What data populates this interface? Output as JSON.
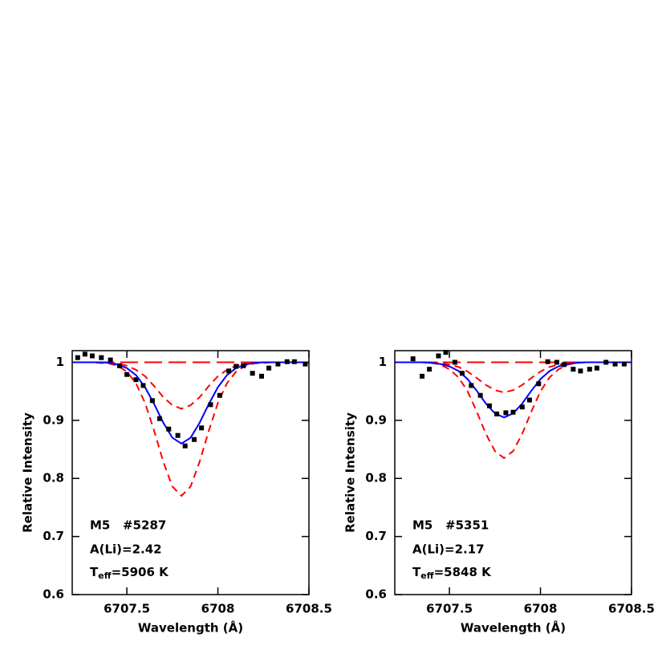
{
  "chart_data": [
    {
      "type": "line",
      "xlabel": "Wavelength (Å)",
      "ylabel": "Relative Intensity",
      "xlim": [
        6707.2,
        6708.5
      ],
      "xticks": [
        6707.5,
        6708,
        6708.5
      ],
      "ylim": [
        0.6,
        1.02
      ],
      "yticks": [
        0.6,
        0.7,
        0.8,
        0.9,
        1
      ],
      "annotations": [
        "M5   #5287",
        "A(Li)=2.42"
      ],
      "teff": {
        "symbol": "T",
        "subscript": "eff",
        "text": "=5906 K"
      },
      "x": [
        6707.2,
        6707.25,
        6707.3,
        6707.35,
        6707.4,
        6707.45,
        6707.5,
        6707.55,
        6707.6,
        6707.65,
        6707.7,
        6707.75,
        6707.8,
        6707.85,
        6707.9,
        6707.95,
        6708,
        6708.05,
        6708.1,
        6708.15,
        6708.2,
        6708.25,
        6708.3,
        6708.35,
        6708.4,
        6708.45,
        6708.5
      ],
      "series": [
        {
          "color": "#ff0000",
          "dash": "long",
          "values": [
            1,
            1,
            1,
            1,
            1,
            1,
            1,
            1,
            1,
            1,
            1,
            1,
            1,
            1,
            1,
            1,
            1,
            1,
            1,
            1,
            1,
            1,
            1,
            1,
            1,
            1,
            1
          ]
        },
        {
          "color": "#ff0000",
          "dash": "short",
          "values": [
            1,
            1,
            1,
            1,
            0.999,
            0.998,
            0.994,
            0.987,
            0.976,
            0.959,
            0.94,
            0.926,
            0.92,
            0.926,
            0.94,
            0.959,
            0.976,
            0.987,
            0.994,
            0.998,
            0.999,
            1,
            1,
            1,
            1,
            1,
            1
          ]
        },
        {
          "color": "#ff0000",
          "dash": "short",
          "values": [
            1,
            1,
            1,
            0.999,
            0.998,
            0.994,
            0.984,
            0.964,
            0.93,
            0.882,
            0.829,
            0.786,
            0.77,
            0.786,
            0.829,
            0.882,
            0.93,
            0.964,
            0.984,
            0.994,
            0.998,
            0.999,
            1,
            1,
            1,
            1,
            1
          ]
        },
        {
          "color": "#0000ff",
          "dash": "solid",
          "values": [
            1,
            1,
            1,
            1,
            0.999,
            0.996,
            0.99,
            0.978,
            0.957,
            0.928,
            0.896,
            0.87,
            0.86,
            0.87,
            0.896,
            0.928,
            0.957,
            0.978,
            0.99,
            0.996,
            0.999,
            1,
            1,
            1,
            1,
            1,
            1
          ]
        }
      ],
      "points": {
        "color": "#000000",
        "x": [
          6707.23,
          6707.27,
          6707.31,
          6707.36,
          6707.41,
          6707.46,
          6707.5,
          6707.55,
          6707.59,
          6707.64,
          6707.68,
          6707.73,
          6707.78,
          6707.82,
          6707.87,
          6707.91,
          6707.96,
          6708.01,
          6708.06,
          6708.1,
          6708.14,
          6708.19,
          6708.24,
          6708.28,
          6708.33,
          6708.38,
          6708.42,
          6708.48
        ],
        "values": [
          1.008,
          1.014,
          1.011,
          1.008,
          1.004,
          0.994,
          0.979,
          0.97,
          0.96,
          0.934,
          0.903,
          0.885,
          0.874,
          0.856,
          0.867,
          0.887,
          0.927,
          0.943,
          0.985,
          0.993,
          0.994,
          0.981,
          0.976,
          0.99,
          0.997,
          1.001,
          1.001,
          0.997
        ]
      }
    },
    {
      "type": "line",
      "xlabel": "Wavelength (Å)",
      "ylabel": "Relative Intensity",
      "xlim": [
        6707.2,
        6708.5
      ],
      "xticks": [
        6707.5,
        6708,
        6708.5
      ],
      "ylim": [
        0.6,
        1.02
      ],
      "yticks": [
        0.6,
        0.7,
        0.8,
        0.9,
        1
      ],
      "annotations": [
        "M5   #5351",
        "A(Li)=2.17"
      ],
      "teff": {
        "symbol": "T",
        "subscript": "eff",
        "text": "=5848 K"
      },
      "x": [
        6707.2,
        6707.25,
        6707.3,
        6707.35,
        6707.4,
        6707.45,
        6707.5,
        6707.55,
        6707.6,
        6707.65,
        6707.7,
        6707.75,
        6707.8,
        6707.85,
        6707.9,
        6707.95,
        6708,
        6708.05,
        6708.1,
        6708.15,
        6708.2,
        6708.25,
        6708.3,
        6708.35,
        6708.4,
        6708.45,
        6708.5
      ],
      "series": [
        {
          "color": "#ff0000",
          "dash": "long",
          "values": [
            1,
            1,
            1,
            1,
            1,
            1,
            1,
            1,
            1,
            1,
            1,
            1,
            1,
            1,
            1,
            1,
            1,
            1,
            1,
            1,
            1,
            1,
            1,
            1,
            1,
            1,
            1
          ]
        },
        {
          "color": "#ff0000",
          "dash": "short",
          "values": [
            1,
            1,
            1,
            1,
            1,
            0.999,
            0.996,
            0.992,
            0.984,
            0.973,
            0.961,
            0.952,
            0.948,
            0.952,
            0.961,
            0.973,
            0.984,
            0.992,
            0.996,
            0.999,
            1,
            1,
            1,
            1,
            1,
            1,
            1
          ]
        },
        {
          "color": "#ff0000",
          "dash": "short",
          "values": [
            1,
            1,
            1,
            1,
            0.999,
            0.996,
            0.988,
            0.974,
            0.95,
            0.915,
            0.877,
            0.847,
            0.835,
            0.847,
            0.877,
            0.915,
            0.95,
            0.974,
            0.988,
            0.996,
            0.999,
            1,
            1,
            1,
            1,
            1,
            1
          ]
        },
        {
          "color": "#0000ff",
          "dash": "solid",
          "values": [
            1,
            1,
            1,
            1,
            0.999,
            0.997,
            0.993,
            0.985,
            0.971,
            0.951,
            0.929,
            0.912,
            0.905,
            0.912,
            0.929,
            0.951,
            0.971,
            0.985,
            0.993,
            0.997,
            0.999,
            1,
            1,
            1,
            1,
            1,
            1
          ]
        }
      ],
      "points": {
        "color": "#000000",
        "x": [
          6707.3,
          6707.35,
          6707.39,
          6707.44,
          6707.48,
          6707.53,
          6707.57,
          6707.62,
          6707.67,
          6707.72,
          6707.76,
          6707.81,
          6707.85,
          6707.9,
          6707.94,
          6707.99,
          6708.04,
          6708.09,
          6708.13,
          6708.18,
          6708.22,
          6708.27,
          6708.31,
          6708.36,
          6708.41,
          6708.46
        ],
        "values": [
          1.006,
          0.976,
          0.988,
          1.011,
          1.017,
          1,
          0.981,
          0.96,
          0.943,
          0.925,
          0.911,
          0.913,
          0.914,
          0.923,
          0.935,
          0.963,
          1.001,
          1,
          0.996,
          0.988,
          0.985,
          0.988,
          0.99,
          1,
          0.997,
          0.997
        ]
      }
    }
  ]
}
